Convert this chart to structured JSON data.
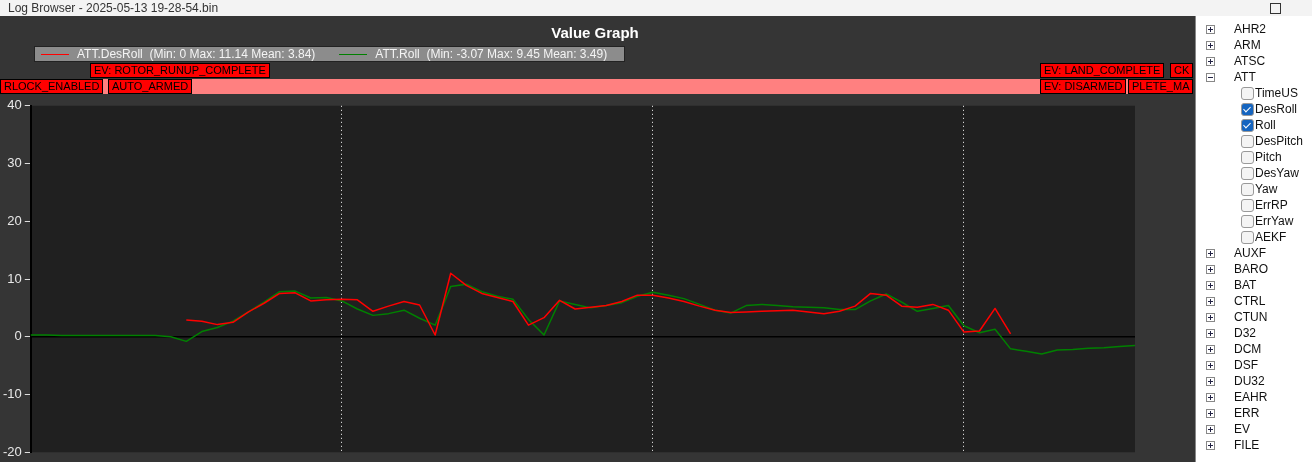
{
  "chart_data": {
    "type": "line",
    "title": "Value Graph",
    "annotations": [
      "Log Browser - 2025-05-13 19-28-54.bin",
      "EV: ROTOR_RUNUP_COMPLETE",
      "EV: LAND_COMPLETE",
      "CK",
      "RLOCK_ENABLED",
      "AUTO_ARMED",
      "EV: DISARMED",
      "PLETE_MA",
      "AHR2",
      "ARM",
      "ATSC",
      "ATT",
      "TimeUS",
      "DesRoll",
      "Roll",
      "DesPitch",
      "Pitch",
      "DesYaw",
      "Yaw",
      "ErrRP",
      "ErrYaw",
      "AEKF",
      "AUXF",
      "BARO",
      "BAT",
      "CTRL",
      "CTUN",
      "D32",
      "DCM",
      "DSF",
      "DU32",
      "EAHR",
      "ERR",
      "EV",
      "FILE"
    ],
    "categories": [
      null,
      null,
      null,
      null,
      null,
      null,
      null,
      null,
      null,
      null,
      null,
      null,
      null,
      null,
      null,
      null,
      null,
      null,
      null,
      null,
      null,
      null,
      null,
      null,
      null,
      null,
      null,
      null,
      null,
      null,
      null,
      null,
      null,
      null,
      null,
      null,
      null,
      null,
      null,
      null,
      null,
      null,
      null,
      null,
      null,
      null,
      null,
      null,
      null,
      null,
      null,
      null,
      null,
      null,
      null,
      null,
      null,
      null,
      null,
      null,
      null,
      null,
      null,
      null,
      null,
      null,
      null,
      null,
      null,
      null,
      null,
      null
    ],
    "series": [
      {
        "name": "ATT.DesRoll  (Min: 0 Max: 11.14 Mean: 3.84)",
        "color": "#ff0000",
        "values": [
          null,
          null,
          null,
          null,
          null,
          null,
          null,
          null,
          null,
          null,
          2.9,
          2.7,
          2.1,
          2.5,
          4.3,
          5.8,
          7.5,
          7.6,
          6.2,
          6.4,
          6.5,
          6.4,
          4.4,
          5.3,
          6.1,
          5.5,
          0.3,
          11.0,
          8.9,
          7.5,
          6.8,
          6.1,
          2.0,
          3.3,
          6.3,
          4.8,
          5.1,
          5.4,
          6.1,
          7.2,
          7.2,
          6.7,
          6.1,
          5.3,
          4.6,
          4.2,
          4.3,
          4.4,
          4.5,
          4.6,
          4.3,
          4.0,
          4.4,
          5.3,
          7.5,
          7.2,
          5.3,
          5.1,
          5.6,
          4.6,
          0.8,
          1.0,
          4.9,
          0.5,
          null,
          null,
          null,
          null,
          null,
          null,
          null,
          null
        ]
      },
      {
        "name": "ATT.Roll  (Min: -3.07 Max: 9.45 Mean: 3.49)",
        "color": "#008000",
        "values": [
          0.3,
          0.3,
          0.2,
          0.2,
          0.2,
          0.2,
          0.2,
          0.2,
          0.2,
          0,
          -0.8,
          0.9,
          1.6,
          2.7,
          4.3,
          6.0,
          7.8,
          7.9,
          6.7,
          6.8,
          6.2,
          4.8,
          3.7,
          4.0,
          4.6,
          3.2,
          2.0,
          8.7,
          9.1,
          7.8,
          7.0,
          6.5,
          3.0,
          0.3,
          6.2,
          5.6,
          5.0,
          5.4,
          5.9,
          7.0,
          7.7,
          7.2,
          6.6,
          5.6,
          4.6,
          4.1,
          5.4,
          5.6,
          5.4,
          5.2,
          5.1,
          5.0,
          4.7,
          4.7,
          6.2,
          7.4,
          6.0,
          4.4,
          4.9,
          5.4,
          1.9,
          0.7,
          1.3,
          -2.1,
          -2.5,
          -3.0,
          -2.3,
          -2.2,
          -2.0,
          -1.9,
          -1.7,
          -1.5
        ]
      }
    ],
    "ylim": [
      -20,
      40
    ],
    "yticks": [
      -20,
      -10,
      0,
      10,
      20,
      30,
      40
    ],
    "tick_labels": "y",
    "grid": "x",
    "legend": "top",
    "marker": "none",
    "line_style": "solid",
    "ref_lines": [
      {
        "axis": "y",
        "value": 0,
        "color": "#000000"
      }
    ]
  }
}
